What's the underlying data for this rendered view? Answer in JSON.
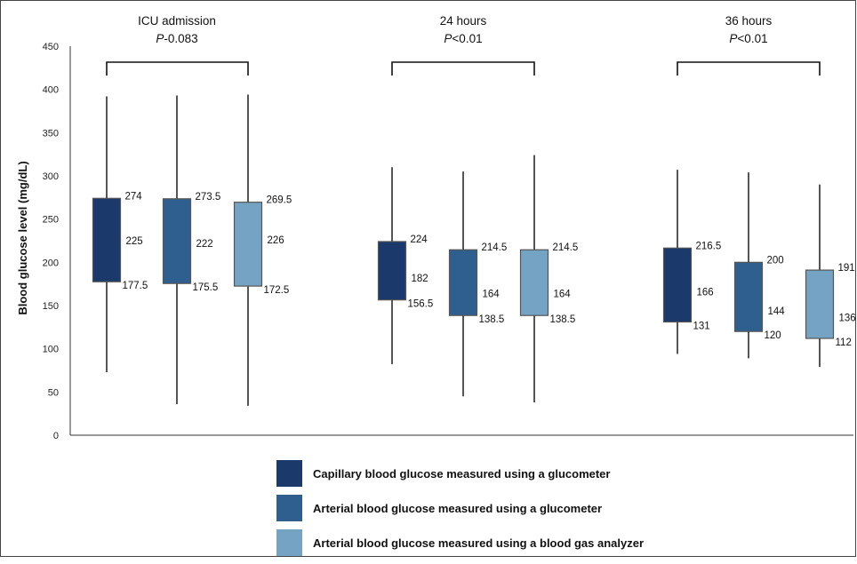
{
  "chart_data": {
    "type": "box",
    "ylabel": "Blood glucose level (mg/dL)",
    "ylim": [
      0,
      450
    ],
    "yticks": [
      "0",
      "50",
      "100",
      "150",
      "200",
      "250",
      "300",
      "350",
      "400",
      "450"
    ],
    "groups": [
      {
        "title": "ICU admission",
        "p_italic": "P",
        "p_rest": "-0.083"
      },
      {
        "title": "24 hours",
        "p_italic": "P",
        "p_rest": "<0.01"
      },
      {
        "title": "36 hours",
        "p_italic": "P",
        "p_rest": "<0.01"
      }
    ],
    "series": [
      {
        "name": "Capillary blood glucose measured using a glucometer",
        "color": "#1b3a6b",
        "boxes": [
          {
            "min": 73,
            "q1": 177.5,
            "median": 225,
            "q3": 274,
            "max": 392,
            "q1_label": "177.5",
            "median_label": "225",
            "q3_label": "274"
          },
          {
            "min": 82,
            "q1": 156.5,
            "median": 182,
            "q3": 224,
            "max": 310,
            "q1_label": "156.5",
            "median_label": "182",
            "q3_label": "224"
          },
          {
            "min": 94,
            "q1": 131,
            "median": 166,
            "q3": 216.5,
            "max": 307,
            "q1_label": "131",
            "median_label": "166",
            "q3_label": "216.5"
          }
        ]
      },
      {
        "name": "Arterial blood glucose measured using a glucometer",
        "color": "#2f5f8f",
        "boxes": [
          {
            "min": 36,
            "q1": 175.5,
            "median": 222,
            "q3": 273.5,
            "max": 393,
            "q1_label": "175.5",
            "median_label": "222",
            "q3_label": "273.5"
          },
          {
            "min": 45,
            "q1": 138.5,
            "median": 164,
            "q3": 214.5,
            "max": 305,
            "q1_label": "138.5",
            "median_label": "164",
            "q3_label": "214.5"
          },
          {
            "min": 89,
            "q1": 120,
            "median": 144,
            "q3": 200,
            "max": 304,
            "q1_label": "120",
            "median_label": "144",
            "q3_label": "200"
          }
        ]
      },
      {
        "name": "Arterial blood glucose measured using a blood gas analyzer",
        "color": "#74a3c4",
        "boxes": [
          {
            "min": 34,
            "q1": 172.5,
            "median": 226,
            "q3": 269.5,
            "max": 394,
            "q1_label": "172.5",
            "median_label": "226",
            "q3_label": "269.5"
          },
          {
            "min": 38,
            "q1": 138.5,
            "median": 164,
            "q3": 214.5,
            "max": 324,
            "q1_label": "138.5",
            "median_label": "164",
            "q3_label": "214.5"
          },
          {
            "min": 79,
            "q1": 112,
            "median": 136,
            "q3": 191,
            "max": 290,
            "q1_label": "112",
            "median_label": "136",
            "q3_label": "191"
          }
        ]
      }
    ]
  }
}
